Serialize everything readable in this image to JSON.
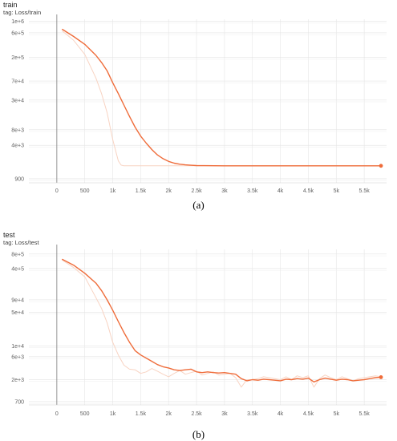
{
  "chart_data": [
    {
      "type": "line",
      "title": "train",
      "subtitle": "tag: Loss/train",
      "caption": "(a)",
      "x_ticks": [
        0,
        500,
        1000,
        1500,
        2000,
        2500,
        3000,
        3500,
        4000,
        4500,
        5000,
        5500
      ],
      "x_tick_labels": [
        "0",
        "500",
        "1k",
        "1.5k",
        "2k",
        "2.5k",
        "3k",
        "3.5k",
        "4k",
        "4.5k",
        "5k",
        "5.5k"
      ],
      "xlim": [
        -500,
        5900
      ],
      "y_scale": "log",
      "y_ticks": [
        1000000,
        600000,
        200000,
        70000,
        30000,
        8000,
        4000,
        900
      ],
      "y_tick_labels": [
        "1e+6",
        "6e+5",
        "2e+5",
        "7e+4",
        "3e+4",
        "8e+3",
        "4e+3",
        "900"
      ],
      "ylim": [
        750,
        1100000
      ],
      "grid": true,
      "series": [
        {
          "role": "raw",
          "color": "#f8d3c2",
          "x": [
            100,
            300,
            500,
            700,
            800,
            900,
            1000,
            1100,
            1150,
            1200,
            1300,
            1500,
            2000,
            2500,
            3000,
            3500,
            4000,
            4500,
            5000,
            5500,
            5800
          ],
          "y": [
            650000,
            430000,
            230000,
            80000,
            40000,
            17000,
            5200,
            2000,
            1650,
            1600,
            1600,
            1600,
            1600,
            1600,
            1600,
            1600,
            1600,
            1600,
            1600,
            1600,
            1600
          ]
        },
        {
          "role": "smoothed",
          "color": "#ef6c3a",
          "x": [
            100,
            300,
            500,
            700,
            800,
            900,
            1000,
            1100,
            1200,
            1300,
            1400,
            1500,
            1600,
            1700,
            1800,
            1900,
            2000,
            2100,
            2200,
            2300,
            2400,
            2500,
            3000,
            3500,
            4000,
            4500,
            5000,
            5500,
            5800
          ],
          "y": [
            700000,
            510000,
            360000,
            220000,
            160000,
            110000,
            65000,
            40000,
            24000,
            14500,
            9000,
            6000,
            4400,
            3300,
            2600,
            2200,
            1950,
            1800,
            1720,
            1670,
            1640,
            1620,
            1600,
            1600,
            1600,
            1600,
            1600,
            1600,
            1600
          ]
        }
      ]
    },
    {
      "type": "line",
      "title": "test",
      "subtitle": "tag: Loss/test",
      "caption": "(b)",
      "x_ticks": [
        0,
        500,
        1000,
        1500,
        2000,
        2500,
        3000,
        3500,
        4000,
        4500,
        5000,
        5500
      ],
      "x_tick_labels": [
        "0",
        "500",
        "1k",
        "1.5k",
        "2k",
        "2.5k",
        "3k",
        "3.5k",
        "4k",
        "4.5k",
        "5k",
        "5.5k"
      ],
      "xlim": [
        -500,
        5900
      ],
      "y_scale": "log",
      "y_ticks": [
        800000,
        400000,
        90000,
        50000,
        10000,
        6000,
        2000,
        700
      ],
      "y_tick_labels": [
        "8e+5",
        "4e+5",
        "9e+4",
        "5e+4",
        "1e+4",
        "6e+3",
        "2e+3",
        "700"
      ],
      "ylim": [
        600,
        1000000
      ],
      "grid": true,
      "series": [
        {
          "role": "raw",
          "color": "#f8d3c2",
          "x": [
            100,
            300,
            500,
            700,
            800,
            900,
            1000,
            1100,
            1200,
            1300,
            1400,
            1500,
            1600,
            1700,
            1800,
            1900,
            2000,
            2100,
            2200,
            2300,
            2400,
            2500,
            2600,
            2700,
            2800,
            2900,
            3000,
            3100,
            3200,
            3300,
            3400,
            3500,
            3600,
            3700,
            3800,
            3900,
            4000,
            4100,
            4200,
            4300,
            4400,
            4500,
            4600,
            4700,
            4800,
            4900,
            5000,
            5100,
            5200,
            5300,
            5400,
            5500,
            5600,
            5700,
            5800
          ],
          "y": [
            600000,
            420000,
            270000,
            100000,
            60000,
            30000,
            12000,
            6500,
            4000,
            3300,
            3200,
            2700,
            2900,
            3400,
            3000,
            2600,
            2300,
            2700,
            3100,
            2600,
            2800,
            3000,
            2500,
            2700,
            2900,
            2500,
            2600,
            2700,
            2200,
            1400,
            2000,
            2000,
            2100,
            2300,
            2200,
            2100,
            2000,
            2300,
            2000,
            2400,
            2200,
            2400,
            1400,
            2100,
            2500,
            2200,
            2000,
            2300,
            2100,
            1900,
            2100,
            2200,
            2300,
            2400,
            2300
          ]
        },
        {
          "role": "smoothed",
          "color": "#ef6c3a",
          "x": [
            100,
            300,
            500,
            700,
            800,
            900,
            1000,
            1100,
            1200,
            1300,
            1400,
            1500,
            1600,
            1700,
            1800,
            1900,
            2000,
            2100,
            2200,
            2300,
            2400,
            2500,
            2600,
            2700,
            2800,
            2900,
            3000,
            3100,
            3200,
            3300,
            3400,
            3500,
            3600,
            3700,
            3800,
            3900,
            4000,
            4100,
            4200,
            4300,
            4400,
            4500,
            4600,
            4700,
            4800,
            4900,
            5000,
            5100,
            5200,
            5300,
            5400,
            5500,
            5600,
            5700,
            5800
          ],
          "y": [
            620000,
            470000,
            320000,
            200000,
            140000,
            90000,
            55000,
            32000,
            19000,
            12000,
            8000,
            6500,
            5600,
            4800,
            4100,
            3700,
            3500,
            3200,
            3100,
            3200,
            3300,
            2900,
            2800,
            2900,
            2800,
            2750,
            2800,
            2700,
            2600,
            2100,
            1900,
            2000,
            1950,
            2050,
            2000,
            1950,
            1900,
            2050,
            2000,
            2100,
            2050,
            2150,
            1800,
            2000,
            2150,
            2050,
            1950,
            2050,
            2000,
            1900,
            1950,
            2000,
            2100,
            2200,
            2250
          ]
        }
      ]
    }
  ]
}
